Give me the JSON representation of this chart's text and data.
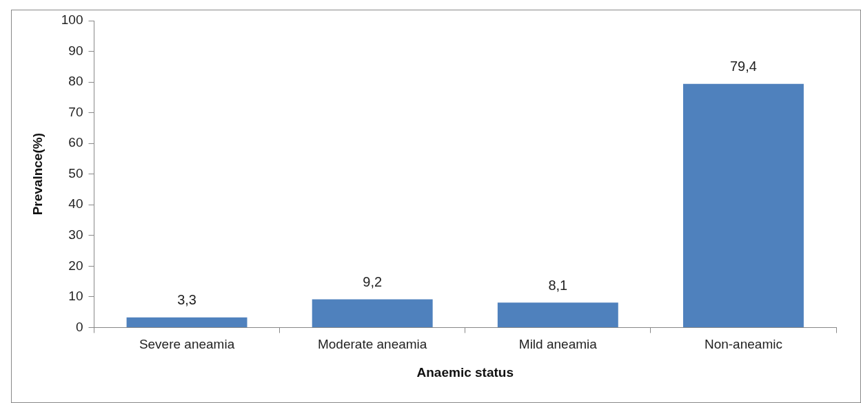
{
  "chart_data": {
    "type": "bar",
    "xlabel": "Anaemic status",
    "ylabel": "Prevalnce(%)",
    "categories": [
      "Severe aneamia",
      "Moderate aneamia",
      "Mild aneamia",
      "Non-aneamic"
    ],
    "values": [
      3.3,
      9.2,
      8.1,
      79.4
    ],
    "value_labels": [
      "3,3",
      "9,2",
      "8,1",
      "79,4"
    ],
    "color": "#4f81bd",
    "ylim": [
      0,
      100
    ],
    "yticks": [
      0,
      10,
      20,
      30,
      40,
      50,
      60,
      70,
      80,
      90,
      100
    ],
    "legend": false
  }
}
